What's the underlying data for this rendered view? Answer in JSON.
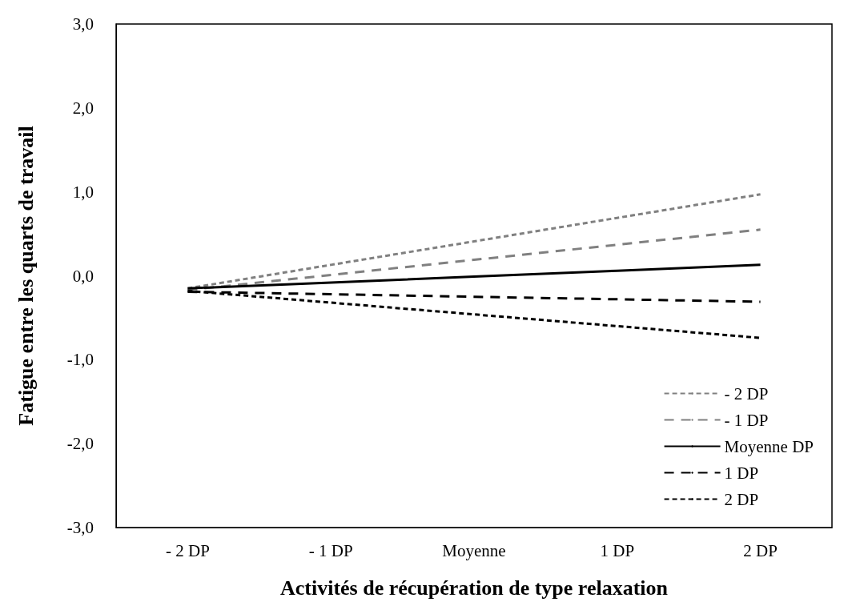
{
  "chart_data": {
    "type": "line",
    "xlabel": "Activités de récupération de type relaxation",
    "ylabel": "Fatigue entre les quarts de travail",
    "categories": [
      "- 2 DP",
      "- 1 DP",
      "Moyenne",
      "1 DP",
      "2 DP"
    ],
    "ylim": [
      -3,
      3
    ],
    "yticks": [
      {
        "value": -3,
        "label": "-3,0"
      },
      {
        "value": -2,
        "label": "-2,0"
      },
      {
        "value": -1,
        "label": "-1,0"
      },
      {
        "value": 0,
        "label": "0,0"
      },
      {
        "value": 1,
        "label": "1,0"
      },
      {
        "value": 2,
        "label": "2,0"
      },
      {
        "value": 3,
        "label": "3,0"
      }
    ],
    "series": [
      {
        "name": "- 2 DP",
        "color": "#808080",
        "line_style": "dotted",
        "values": [
          -0.15,
          0.13,
          0.41,
          0.69,
          0.97
        ]
      },
      {
        "name": "- 1 DP",
        "color": "#808080",
        "line_style": "dashed",
        "values": [
          -0.17,
          0.01,
          0.19,
          0.37,
          0.55
        ]
      },
      {
        "name": "Moyenne DP",
        "color": "#000000",
        "line_style": "solid",
        "values": [
          -0.15,
          -0.08,
          -0.01,
          0.06,
          0.13
        ]
      },
      {
        "name": "1 DP",
        "color": "#000000",
        "line_style": "dashed",
        "values": [
          -0.19,
          -0.22,
          -0.25,
          -0.28,
          -0.31
        ]
      },
      {
        "name": "2 DP",
        "color": "#000000",
        "line_style": "dotted",
        "values": [
          -0.18,
          -0.32,
          -0.46,
          -0.6,
          -0.74
        ]
      }
    ],
    "grid": false,
    "legend": "bottom right",
    "marker": "none"
  }
}
